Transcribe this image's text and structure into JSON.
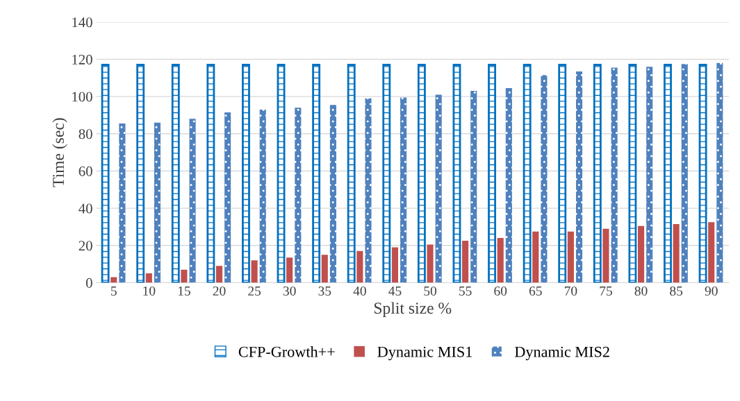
{
  "chart_data": {
    "type": "bar",
    "xlabel": "Split size %",
    "ylabel": "Time (sec)",
    "categories": [
      "5",
      "10",
      "15",
      "20",
      "25",
      "30",
      "35",
      "40",
      "45",
      "50",
      "55",
      "60",
      "65",
      "70",
      "75",
      "80",
      "85",
      "90"
    ],
    "series": [
      {
        "name": "CFP-Growth++",
        "color": "#0070c0",
        "values": [
          117,
          117,
          117,
          117,
          117,
          117,
          117,
          117,
          117,
          117,
          117,
          117,
          117,
          117,
          117,
          117,
          117,
          117
        ]
      },
      {
        "name": "Dynamic MIS1",
        "color": "#c0504d",
        "values": [
          3,
          5,
          7,
          9,
          12,
          13.5,
          15,
          17,
          19,
          20.5,
          22.5,
          24,
          27.5,
          27.5,
          29,
          30.5,
          31.5,
          32.5
        ]
      },
      {
        "name": "Dynamic MIS2",
        "color": "#4f81bd",
        "values": [
          85.5,
          86,
          88,
          91.5,
          93,
          94,
          95.5,
          99,
          99.5,
          101,
          103,
          104.5,
          111.5,
          113.5,
          115.5,
          116,
          117.5,
          118
        ]
      }
    ],
    "ylim": [
      0,
      140
    ],
    "yticks": [
      0,
      20,
      40,
      60,
      80,
      100,
      120,
      140
    ],
    "grid": "y",
    "legend": "bottom"
  }
}
